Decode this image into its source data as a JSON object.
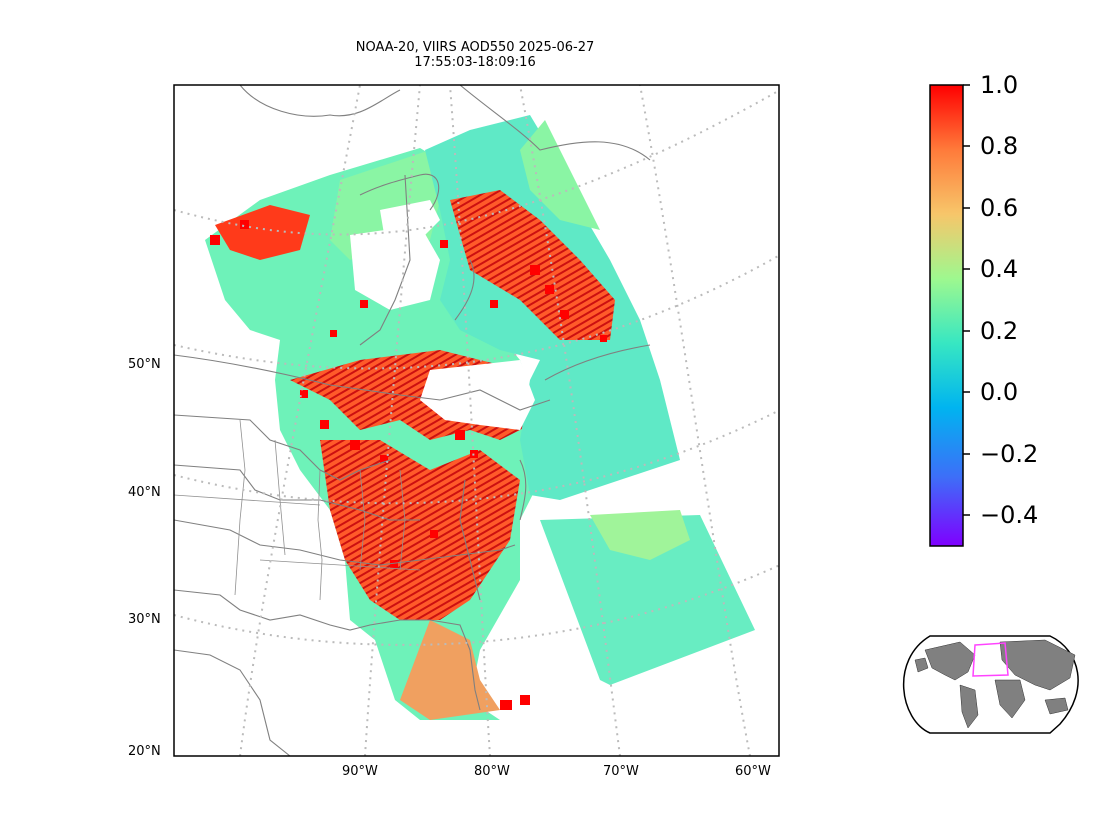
{
  "title": {
    "line1": "NOAA-20, VIIRS AOD550 2025-06-27",
    "line2": "17:55:03-18:09:16"
  },
  "map": {
    "lat_labels": [
      "50°N",
      "40°N",
      "30°N",
      "20°N"
    ],
    "lon_labels": [
      "90°W",
      "80°W",
      "70°W",
      "60°W"
    ],
    "gridlines": "dotted",
    "land_fill": "none",
    "coastline_color": "#808080"
  },
  "colorbar": {
    "colormap": "rainbow",
    "range": [
      -0.5,
      1.0
    ],
    "ticks": [
      "1.0",
      "0.8",
      "0.6",
      "0.4",
      "0.2",
      "0.0",
      "−0.2",
      "−0.4"
    ],
    "stops": [
      "#ff0000",
      "#ff7a3a",
      "#f7c66a",
      "#9ef88f",
      "#37e7c2",
      "#00b4f0",
      "#3d6ff8",
      "#7f00ff"
    ]
  },
  "inset": {
    "projection": "robinson",
    "land_color": "#808080",
    "region_box_color": "#ff44ff"
  }
}
